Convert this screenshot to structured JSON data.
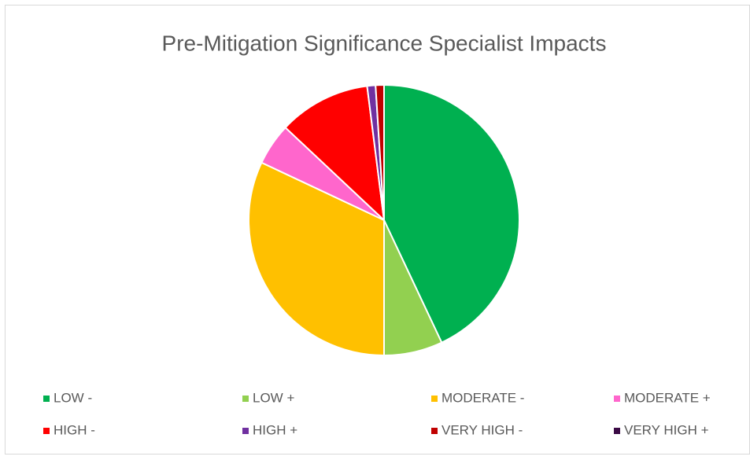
{
  "chart_data": {
    "type": "pie",
    "title": "Pre-Mitigation Significance Specialist Impacts",
    "categories": [
      "LOW -",
      "LOW +",
      "MODERATE -",
      "MODERATE +",
      "HIGH -",
      "HIGH +",
      "VERY HIGH -",
      "VERY HIGH +"
    ],
    "values": [
      43,
      7,
      32,
      5,
      11,
      1,
      1,
      0
    ],
    "colors": [
      "#00b050",
      "#92d050",
      "#ffc000",
      "#ff66cc",
      "#ff0000",
      "#7030a0",
      "#c00000",
      "#3b0a45"
    ],
    "legend": "bottom"
  }
}
